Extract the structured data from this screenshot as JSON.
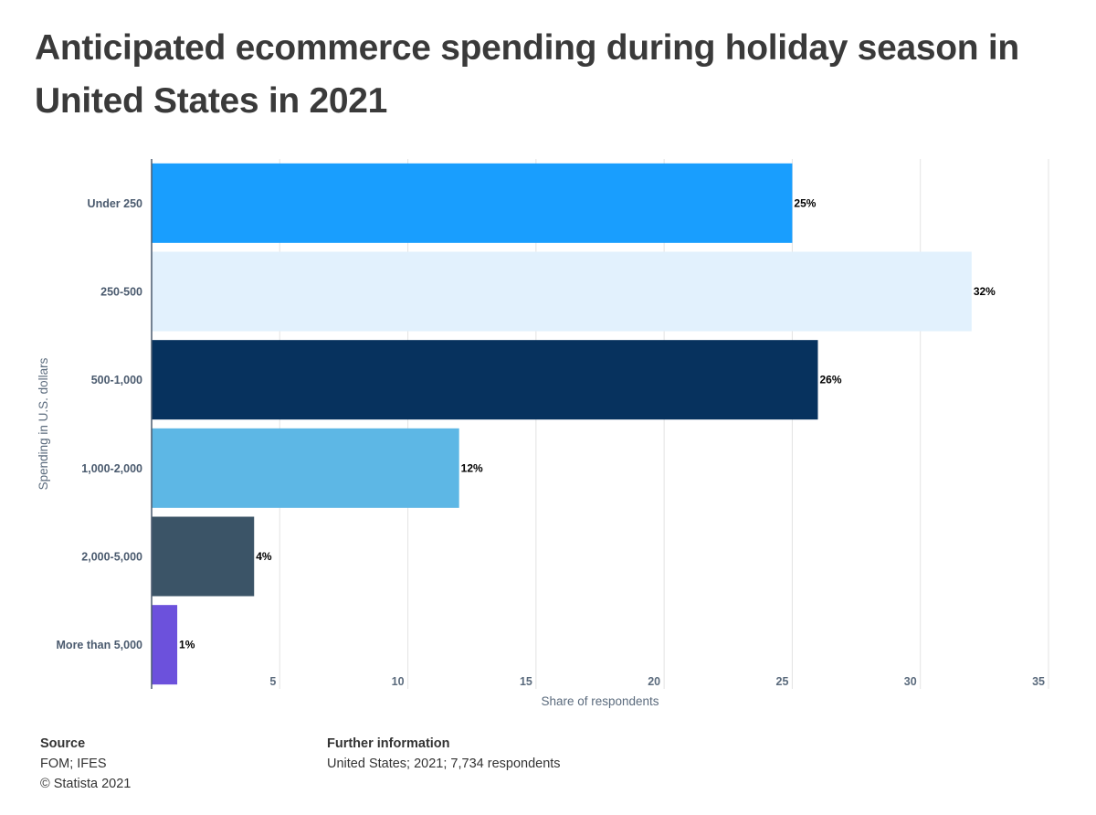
{
  "title": "Anticipated ecommerce spending during holiday season in United States in 2021",
  "chart_data": {
    "type": "bar",
    "orientation": "horizontal",
    "title": "Anticipated ecommerce spending during holiday season in United States in 2021",
    "categories": [
      "Under 250",
      "250-500",
      "500-1,000",
      "1,000-2,000",
      "2,000-5,000",
      "More than 5,000"
    ],
    "values": [
      25,
      32,
      26,
      12,
      4,
      1
    ],
    "data_labels": [
      "25%",
      "32%",
      "26%",
      "12%",
      "4%",
      "1%"
    ],
    "colors": [
      "#199efe",
      "#e2f1fd",
      "#07325e",
      "#5db7e5",
      "#3b5467",
      "#6c51dc"
    ],
    "xlabel": "Share of respondents",
    "ylabel": "Spending in U.S. dollars",
    "xlim": [
      0,
      35
    ],
    "xticks": [
      5,
      10,
      15,
      20,
      25,
      30,
      35
    ],
    "grid": true
  },
  "footer": {
    "source_heading": "Source",
    "source_text": "FOM; IFES",
    "copyright": "© Statista 2021",
    "info_heading": "Further information",
    "info_text": "United States; 2021; 7,734 respondents"
  }
}
